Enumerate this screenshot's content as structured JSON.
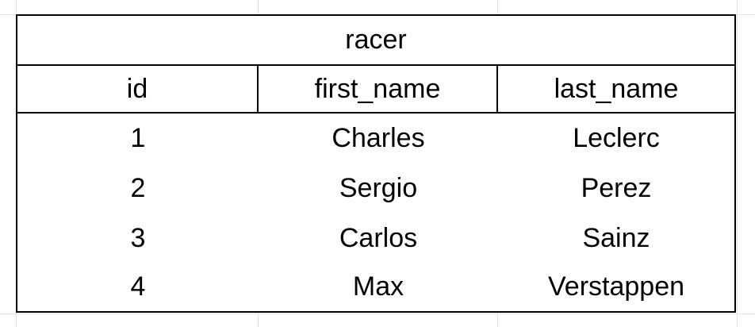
{
  "table": {
    "title": "racer",
    "columns": [
      "id",
      "first_name",
      "last_name"
    ],
    "rows": [
      [
        "1",
        "Charles",
        "Leclerc"
      ],
      [
        "2",
        "Sergio",
        "Perez"
      ],
      [
        "3",
        "Carlos",
        "Sainz"
      ],
      [
        "4",
        "Max",
        "Verstappen"
      ]
    ]
  },
  "colors": {
    "border": "#000000",
    "gridline": "#e2e2e2",
    "background": "#ffffff"
  }
}
